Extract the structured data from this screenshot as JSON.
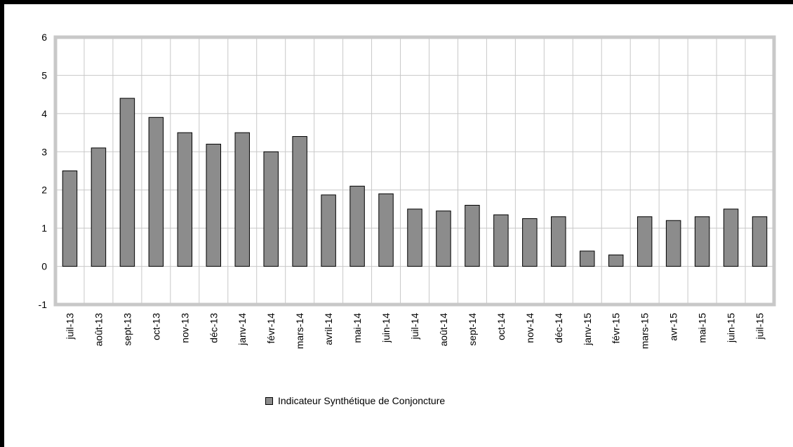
{
  "chart_data": {
    "type": "bar",
    "categories": [
      "juil-13",
      "août-13",
      "sept-13",
      "oct-13",
      "nov-13",
      "déc-13",
      "janv-14",
      "févr-14",
      "mars-14",
      "avril-14",
      "mai-14",
      "juin-14",
      "juil-14",
      "août-14",
      "sept-14",
      "oct-14",
      "nov-14",
      "déc-14",
      "janv-15",
      "févr-15",
      "mars-15",
      "avr-15",
      "mai-15",
      "juin-15",
      "juil-15"
    ],
    "series": [
      {
        "name": "Indicateur Synthétique de Conjoncture",
        "values": [
          2.5,
          3.1,
          4.4,
          3.9,
          3.5,
          3.2,
          3.5,
          3.0,
          3.4,
          1.87,
          2.1,
          1.9,
          1.5,
          1.45,
          1.6,
          1.35,
          1.25,
          1.3,
          0.4,
          0.3,
          1.3,
          1.2,
          1.3,
          1.5,
          1.3
        ]
      }
    ],
    "ylim": [
      -1,
      6
    ],
    "yticks": [
      -1,
      0,
      1,
      2,
      3,
      4,
      5,
      6
    ],
    "grid": true,
    "legend_position": "bottom",
    "colors": {
      "bar_fill": "#8c8c8c",
      "bar_stroke": "#000000",
      "grid": "#c8c8c8",
      "plot_border": "#c8c8c8",
      "frame": "#000000"
    }
  }
}
